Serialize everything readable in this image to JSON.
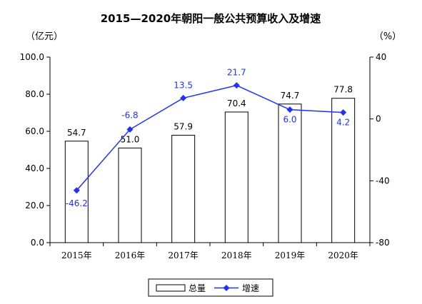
{
  "chart_data": {
    "type": "bar",
    "title": "2015—2020年朝阳一般公共预算收入及增速",
    "left_unit": "（亿元）",
    "right_unit": "（%）",
    "categories": [
      "2015年",
      "2016年",
      "2017年",
      "2018年",
      "2019年",
      "2020年"
    ],
    "series": [
      {
        "name": "总量",
        "type": "bar",
        "axis": "left",
        "values": [
          54.7,
          51.0,
          57.9,
          70.4,
          74.7,
          77.8
        ],
        "labels": [
          "54.7",
          "51.0",
          "57.9",
          "70.4",
          "74.7",
          "77.8"
        ],
        "color": "#ffffff",
        "stroke": "#000000"
      },
      {
        "name": "增速",
        "type": "line",
        "axis": "right",
        "values": [
          -46.2,
          -6.8,
          13.5,
          21.7,
          6.0,
          4.2
        ],
        "labels": [
          "-46.2",
          "-6.8",
          "13.5",
          "21.7",
          "6.0",
          "4.2"
        ],
        "color": "#1f30ff"
      }
    ],
    "y_left": {
      "min": 0,
      "max": 100,
      "ticks": [
        "0.0",
        "20.0",
        "40.0",
        "60.0",
        "80.0",
        "100.0"
      ]
    },
    "y_right": {
      "min": -80,
      "max": 40,
      "ticks": [
        "-80",
        "-40",
        "0",
        "40"
      ]
    },
    "grid": false,
    "legend_position": "bottom"
  }
}
